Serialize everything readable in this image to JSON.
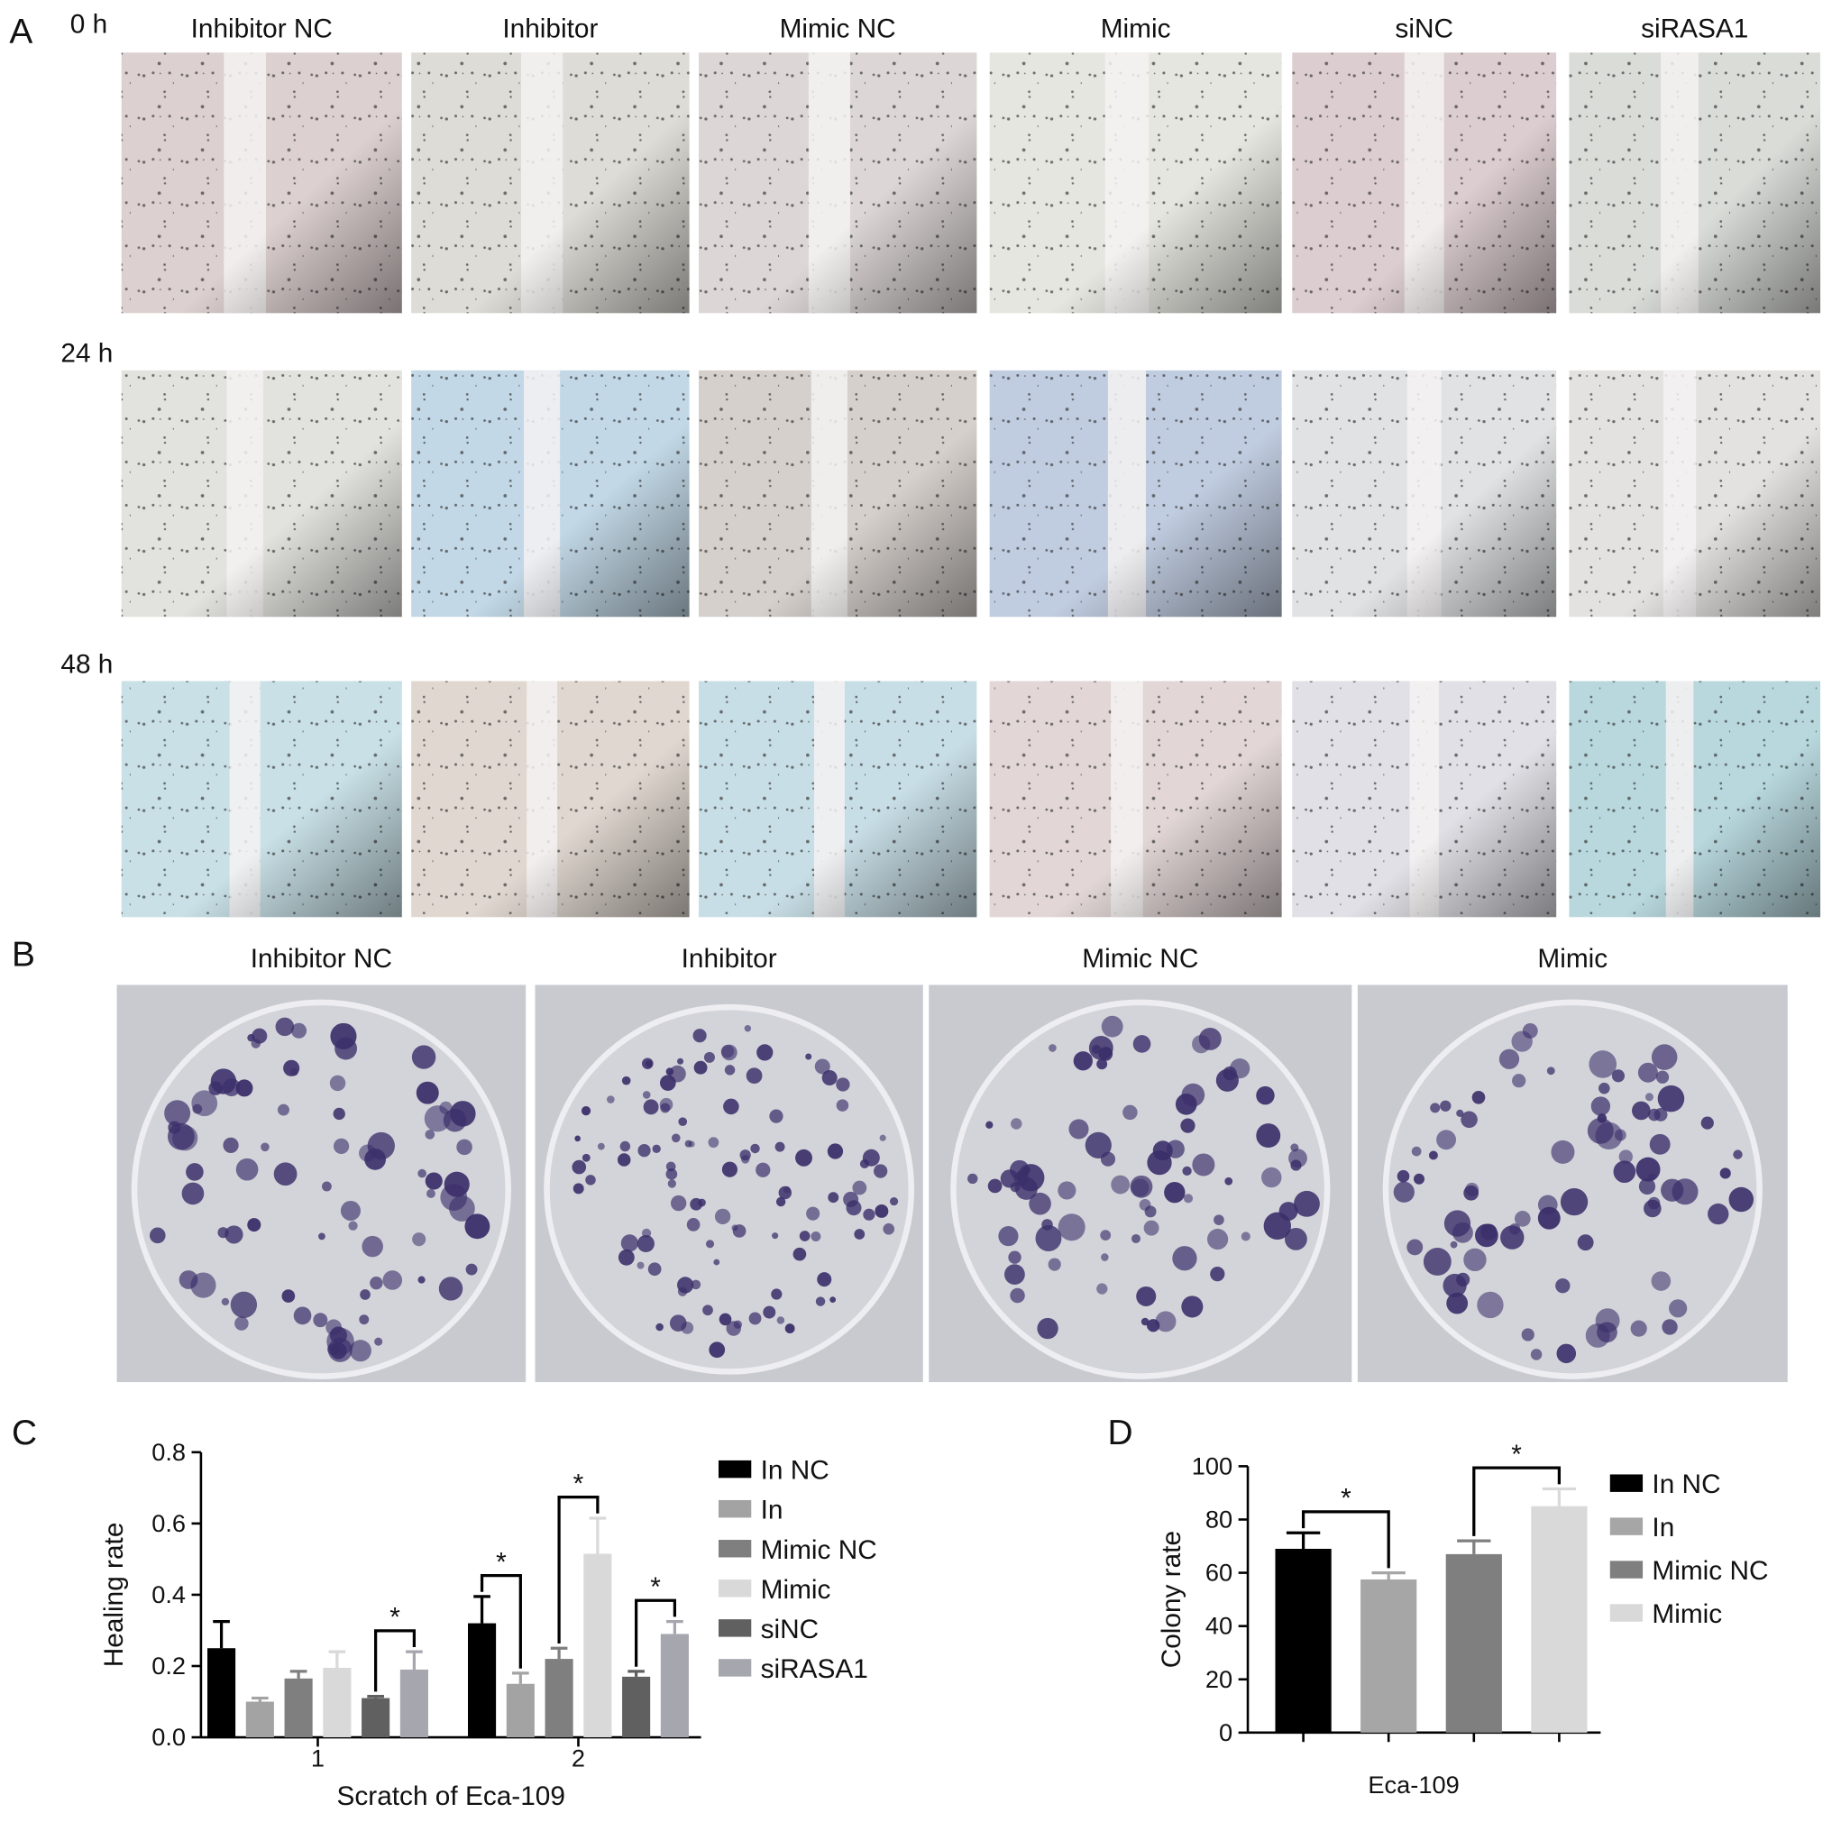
{
  "panels": {
    "a": "A",
    "b": "B",
    "c": "C",
    "d": "D"
  },
  "scratch": {
    "time_labels": [
      "0 h",
      "24 h",
      "48 h"
    ],
    "groups": [
      "Inhibitor NC",
      "Inhibitor",
      "Mimic NC",
      "Mimic",
      "siNC",
      "siRASA1"
    ]
  },
  "colony": {
    "groups": [
      "Inhibitor NC",
      "Inhibitor",
      "Mimic NC",
      "Mimic"
    ]
  },
  "chart_data": [
    {
      "type": "bar",
      "ylabel": "Healing rate",
      "xlabel": "Scratch of Eca-109",
      "categories": [
        "1",
        "2"
      ],
      "ylim": [
        0,
        0.8
      ],
      "yticks": [
        {
          "value": 0,
          "label": "0.0"
        },
        0.2,
        0.4,
        0.6,
        0.8
      ],
      "series": [
        {
          "name": "In NC",
          "color": "#000000",
          "values": [
            0.25,
            0.32
          ],
          "errors": [
            0.075,
            0.075
          ]
        },
        {
          "name": "In",
          "color": "#a3a3a3",
          "values": [
            0.1,
            0.15
          ],
          "errors": [
            0.01,
            0.03
          ]
        },
        {
          "name": "Mimic NC",
          "color": "#7f7f7f",
          "values": [
            0.165,
            0.22
          ],
          "errors": [
            0.02,
            0.03
          ]
        },
        {
          "name": "Mimic",
          "color": "#d9d9d9",
          "values": [
            0.195,
            0.515
          ],
          "errors": [
            0.045,
            0.1
          ]
        },
        {
          "name": "siNC",
          "color": "#606060",
          "values": [
            0.11,
            0.17
          ],
          "errors": [
            0.005,
            0.015
          ]
        },
        {
          "name": "siRASA1",
          "color": "#a6a6ae",
          "values": [
            0.19,
            0.29
          ],
          "errors": [
            0.05,
            0.035
          ]
        }
      ],
      "annotations": [
        {
          "text": "*",
          "category": 0,
          "series": [
            4,
            5
          ]
        },
        {
          "text": "*",
          "category": 1,
          "series": [
            0,
            1
          ]
        },
        {
          "text": "*",
          "category": 1,
          "series": [
            2,
            3
          ]
        },
        {
          "text": "*",
          "category": 1,
          "series": [
            4,
            5
          ]
        }
      ]
    },
    {
      "type": "bar",
      "ylabel": "Colony rate",
      "categories": [
        "Eca-109"
      ],
      "ylim": [
        0,
        100
      ],
      "yticks": [
        0,
        20,
        40,
        60,
        80,
        100
      ],
      "series": [
        {
          "name": "In NC",
          "color": "#000000",
          "values": [
            69
          ],
          "errors": [
            6
          ]
        },
        {
          "name": "In",
          "color": "#a6a6a6",
          "values": [
            57.5
          ],
          "errors": [
            2.5
          ]
        },
        {
          "name": "Mimic NC",
          "color": "#7f7f7f",
          "values": [
            67
          ],
          "errors": [
            5
          ]
        },
        {
          "name": "Mimic",
          "color": "#d9d9d9",
          "values": [
            85
          ],
          "errors": [
            6.5
          ]
        }
      ],
      "annotations": [
        {
          "text": "*",
          "category": 0,
          "series": [
            0,
            1
          ]
        },
        {
          "text": "*",
          "category": 0,
          "series": [
            2,
            3
          ]
        }
      ]
    }
  ]
}
